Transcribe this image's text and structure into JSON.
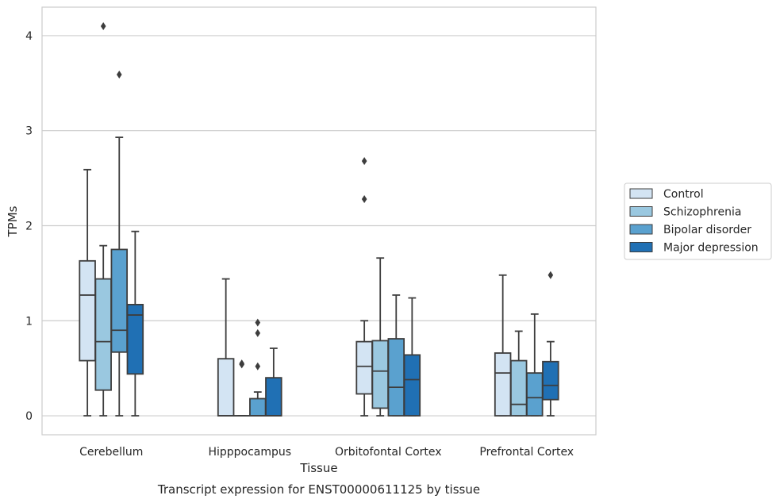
{
  "chart_data": {
    "type": "box",
    "caption": "Transcript expression for ENST00000611125 by tissue",
    "xlabel": "Tissue",
    "ylabel": "TPMs",
    "ylim": [
      -0.2,
      4.3
    ],
    "yticks": [
      0,
      1,
      2,
      3,
      4
    ],
    "grid": true,
    "legend_position": "right",
    "categories": [
      "Cerebellum",
      "Hipppocampus",
      "Orbitofontal Cortex",
      "Prefrontal Cortex"
    ],
    "series": [
      {
        "name": "Control",
        "color": "#d3e4f3",
        "boxes": [
          {
            "q1": 0.58,
            "median": 1.27,
            "q3": 1.63,
            "whislo": 0.0,
            "whishi": 2.59,
            "fliers": []
          },
          {
            "q1": 0.0,
            "median": 0.0,
            "q3": 0.6,
            "whislo": 0.0,
            "whishi": 1.44,
            "fliers": []
          },
          {
            "q1": 0.23,
            "median": 0.52,
            "q3": 0.78,
            "whislo": 0.0,
            "whishi": 1.0,
            "fliers": [
              2.28,
              2.68
            ]
          },
          {
            "q1": 0.0,
            "median": 0.45,
            "q3": 0.66,
            "whislo": 0.0,
            "whishi": 1.48,
            "fliers": []
          }
        ]
      },
      {
        "name": "Schizophrenia",
        "color": "#9ac8e0",
        "boxes": [
          {
            "q1": 0.27,
            "median": 0.78,
            "q3": 1.44,
            "whislo": 0.0,
            "whishi": 1.79,
            "fliers": [
              4.1
            ]
          },
          {
            "q1": 0.0,
            "median": 0.0,
            "q3": 0.0,
            "whislo": 0.0,
            "whishi": 0.0,
            "fliers": [
              0.54,
              0.55
            ]
          },
          {
            "q1": 0.08,
            "median": 0.47,
            "q3": 0.79,
            "whislo": 0.0,
            "whishi": 1.66,
            "fliers": []
          },
          {
            "q1": 0.0,
            "median": 0.12,
            "q3": 0.58,
            "whislo": 0.0,
            "whishi": 0.89,
            "fliers": []
          }
        ]
      },
      {
        "name": "Bipolar disorder",
        "color": "#5aa1cf",
        "boxes": [
          {
            "q1": 0.67,
            "median": 0.9,
            "q3": 1.75,
            "whislo": 0.0,
            "whishi": 2.93,
            "fliers": [
              3.59
            ]
          },
          {
            "q1": 0.0,
            "median": 0.0,
            "q3": 0.18,
            "whislo": 0.0,
            "whishi": 0.25,
            "fliers": [
              0.52,
              0.87,
              0.98
            ]
          },
          {
            "q1": 0.0,
            "median": 0.3,
            "q3": 0.81,
            "whislo": 0.0,
            "whishi": 1.27,
            "fliers": []
          },
          {
            "q1": 0.0,
            "median": 0.19,
            "q3": 0.45,
            "whislo": 0.0,
            "whishi": 1.07,
            "fliers": []
          }
        ]
      },
      {
        "name": "Major depression",
        "color": "#2070b4",
        "boxes": [
          {
            "q1": 0.44,
            "median": 1.06,
            "q3": 1.17,
            "whislo": 0.0,
            "whishi": 1.94,
            "fliers": []
          },
          {
            "q1": 0.0,
            "median": 0.0,
            "q3": 0.4,
            "whislo": 0.0,
            "whishi": 0.71,
            "fliers": []
          },
          {
            "q1": 0.0,
            "median": 0.38,
            "q3": 0.64,
            "whislo": 0.0,
            "whishi": 1.24,
            "fliers": []
          },
          {
            "q1": 0.17,
            "median": 0.32,
            "q3": 0.57,
            "whislo": 0.0,
            "whishi": 0.78,
            "fliers": [
              1.48
            ]
          }
        ]
      }
    ]
  }
}
